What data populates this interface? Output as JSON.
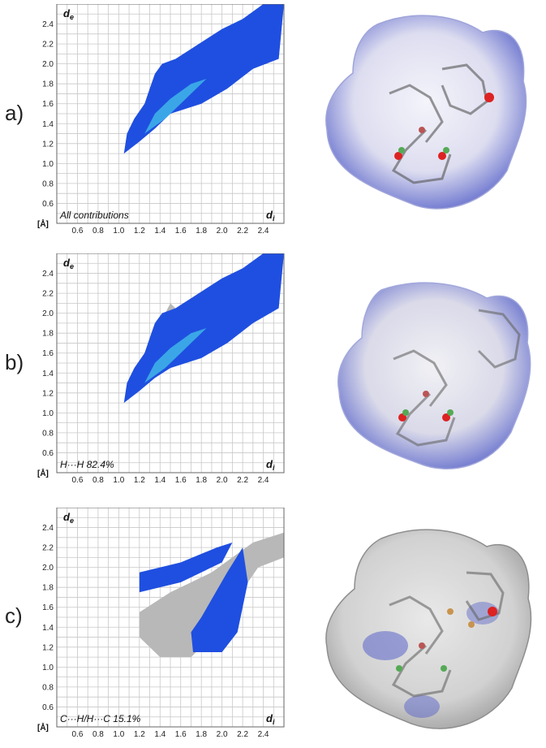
{
  "chart_data": [
    {
      "type": "scatter",
      "panel_label": "a)",
      "xlabel_main": "d",
      "xlabel_sub": "i",
      "ylabel_main": "d",
      "ylabel_sub": "e",
      "unit": "[Å]",
      "contribution": "All contributions",
      "xlim": [
        0.4,
        2.6
      ],
      "ylim": [
        0.4,
        2.6
      ],
      "x_ticks": [
        "0.6",
        "0.8",
        "1.0",
        "1.2",
        "1.4",
        "1.6",
        "1.8",
        "2.0",
        "2.2",
        "2.4"
      ],
      "y_ticks": [
        "0.6",
        "0.8",
        "1.0",
        "1.2",
        "1.4",
        "1.6",
        "1.8",
        "2.0",
        "2.2",
        "2.4"
      ],
      "grid": true,
      "blue_region": [
        [
          1.05,
          1.1
        ],
        [
          1.2,
          1.22
        ],
        [
          1.35,
          1.35
        ],
        [
          1.5,
          1.5
        ],
        [
          1.65,
          1.55
        ],
        [
          1.8,
          1.6
        ],
        [
          2.05,
          1.75
        ],
        [
          2.3,
          1.95
        ],
        [
          2.55,
          2.05
        ],
        [
          2.6,
          2.6
        ],
        [
          2.4,
          2.6
        ],
        [
          2.2,
          2.45
        ],
        [
          2.0,
          2.35
        ],
        [
          1.85,
          2.25
        ],
        [
          1.7,
          2.15
        ],
        [
          1.55,
          2.05
        ],
        [
          1.42,
          2.0
        ],
        [
          1.35,
          1.9
        ],
        [
          1.3,
          1.75
        ],
        [
          1.25,
          1.6
        ],
        [
          1.15,
          1.45
        ],
        [
          1.08,
          1.3
        ]
      ],
      "cyan_core": [
        [
          1.25,
          1.3
        ],
        [
          1.45,
          1.45
        ],
        [
          1.6,
          1.6
        ],
        [
          1.75,
          1.75
        ],
        [
          1.85,
          1.85
        ],
        [
          1.7,
          1.8
        ],
        [
          1.5,
          1.65
        ],
        [
          1.35,
          1.5
        ]
      ],
      "grey_region": []
    },
    {
      "type": "scatter",
      "panel_label": "b)",
      "xlabel_main": "d",
      "xlabel_sub": "i",
      "ylabel_main": "d",
      "ylabel_sub": "e",
      "unit": "[Å]",
      "contribution": "H···H 82.4%",
      "xlim": [
        0.4,
        2.6
      ],
      "ylim": [
        0.4,
        2.6
      ],
      "x_ticks": [
        "0.6",
        "0.8",
        "1.0",
        "1.2",
        "1.4",
        "1.6",
        "1.8",
        "2.0",
        "2.2",
        "2.4"
      ],
      "y_ticks": [
        "0.6",
        "0.8",
        "1.0",
        "1.2",
        "1.4",
        "1.6",
        "1.8",
        "2.0",
        "2.2",
        "2.4"
      ],
      "grid": true,
      "blue_region": [
        [
          1.05,
          1.1
        ],
        [
          1.2,
          1.22
        ],
        [
          1.35,
          1.35
        ],
        [
          1.5,
          1.45
        ],
        [
          1.65,
          1.5
        ],
        [
          1.8,
          1.55
        ],
        [
          2.05,
          1.7
        ],
        [
          2.3,
          1.9
        ],
        [
          2.55,
          2.05
        ],
        [
          2.6,
          2.6
        ],
        [
          2.4,
          2.6
        ],
        [
          2.2,
          2.45
        ],
        [
          2.0,
          2.35
        ],
        [
          1.85,
          2.25
        ],
        [
          1.7,
          2.15
        ],
        [
          1.55,
          2.05
        ],
        [
          1.42,
          2.0
        ],
        [
          1.35,
          1.9
        ],
        [
          1.3,
          1.75
        ],
        [
          1.25,
          1.6
        ],
        [
          1.15,
          1.45
        ],
        [
          1.08,
          1.3
        ]
      ],
      "cyan_core": [
        [
          1.25,
          1.3
        ],
        [
          1.45,
          1.45
        ],
        [
          1.6,
          1.6
        ],
        [
          1.75,
          1.75
        ],
        [
          1.85,
          1.85
        ],
        [
          1.7,
          1.8
        ],
        [
          1.5,
          1.65
        ],
        [
          1.35,
          1.5
        ]
      ],
      "grey_region": [
        [
          1.4,
          1.9
        ],
        [
          1.5,
          2.1
        ],
        [
          1.6,
          2.0
        ],
        [
          1.5,
          1.85
        ]
      ]
    },
    {
      "type": "scatter",
      "panel_label": "c)",
      "xlabel_main": "d",
      "xlabel_sub": "i",
      "ylabel_main": "d",
      "ylabel_sub": "e",
      "unit": "[Å]",
      "contribution": "C···H/H···C 15.1%",
      "xlim": [
        0.4,
        2.6
      ],
      "ylim": [
        0.4,
        2.6
      ],
      "x_ticks": [
        "0.6",
        "0.8",
        "1.0",
        "1.2",
        "1.4",
        "1.6",
        "1.8",
        "2.0",
        "2.2",
        "2.4"
      ],
      "y_ticks": [
        "0.6",
        "0.8",
        "1.0",
        "1.2",
        "1.4",
        "1.6",
        "1.8",
        "2.0",
        "2.2",
        "2.4"
      ],
      "grid": true,
      "blue_region": [
        [
          1.2,
          1.95
        ],
        [
          1.6,
          2.05
        ],
        [
          1.95,
          2.2
        ],
        [
          2.1,
          2.25
        ],
        [
          2.0,
          2.05
        ],
        [
          1.6,
          1.85
        ],
        [
          1.2,
          1.75
        ]
      ],
      "blue_region_2": [
        [
          1.72,
          1.15
        ],
        [
          2.0,
          1.15
        ],
        [
          2.15,
          1.35
        ],
        [
          2.25,
          1.85
        ],
        [
          2.2,
          2.2
        ],
        [
          2.05,
          1.95
        ],
        [
          1.8,
          1.5
        ],
        [
          1.7,
          1.35
        ]
      ],
      "cyan_core": [],
      "grey_region": [
        [
          1.2,
          1.3
        ],
        [
          1.2,
          1.55
        ],
        [
          1.5,
          1.75
        ],
        [
          1.9,
          1.95
        ],
        [
          2.3,
          2.25
        ],
        [
          2.6,
          2.35
        ],
        [
          2.6,
          2.1
        ],
        [
          2.35,
          2.0
        ],
        [
          2.25,
          1.85
        ],
        [
          2.0,
          1.4
        ],
        [
          1.7,
          1.1
        ],
        [
          1.4,
          1.1
        ]
      ]
    }
  ]
}
